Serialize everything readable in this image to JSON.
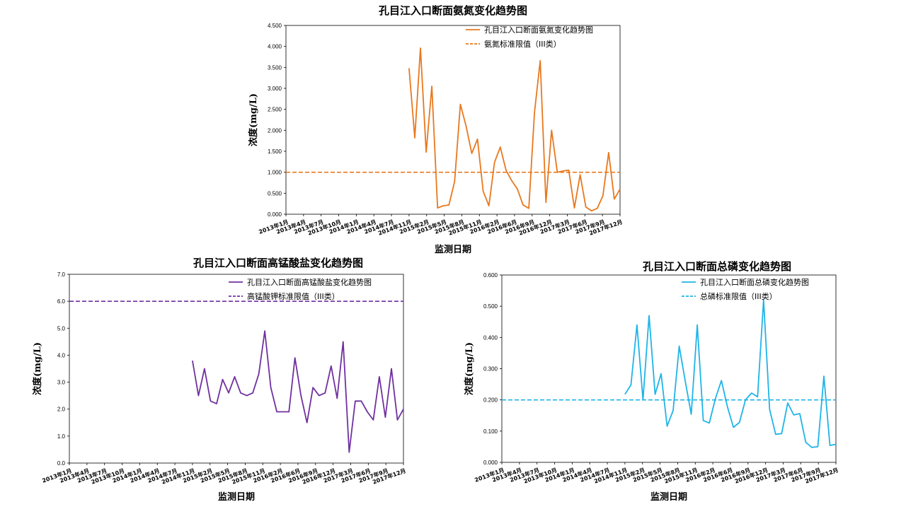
{
  "chart_data": [
    {
      "type": "line",
      "title": "孔目江入口断面氨氮变化趋势图",
      "xlabel": "监测日期",
      "ylabel": "浓度(mg/L)",
      "ylim": [
        0,
        4.5
      ],
      "y_ticks": [
        "0.000",
        "0.500",
        "1.000",
        "1.500",
        "2.000",
        "2.500",
        "3.000",
        "3.500",
        "4.000",
        "4.500"
      ],
      "x_ticks": [
        "2013年1月",
        "2013年4月",
        "2013年7月",
        "2013年10月",
        "2014年1月",
        "2014年4月",
        "2014年7月",
        "2014年11月",
        "2015年2月",
        "2015年5月",
        "2015年8月",
        "2015年11月",
        "2016年2月",
        "2016年6月",
        "2016年9月",
        "2016年12月",
        "2017年3月",
        "2017年6月",
        "2017年9月",
        "2017年12月"
      ],
      "grid": false,
      "legend_position": "top-right",
      "series": [
        {
          "name": "孔目江入口断面氨氮变化趋势图",
          "color": "#E8781E",
          "dashed": false,
          "values": [
            3.48,
            1.82,
            3.96,
            1.48,
            3.05,
            0.15,
            0.2,
            0.22,
            0.78,
            2.62,
            2.1,
            1.45,
            1.79,
            0.55,
            0.2,
            1.24,
            1.6,
            1.05,
            0.8,
            0.6,
            0.22,
            0.14,
            2.42,
            3.66,
            0.28,
            2.0,
            1.0,
            1.03,
            1.05,
            0.15,
            0.94,
            0.17,
            0.08,
            0.14,
            0.44,
            1.47,
            0.36,
            0.6
          ],
          "start_x": 7.0,
          "end_x": 19.0
        },
        {
          "name": "氨氮标准限值（III类）",
          "color": "#E8781E",
          "dashed": true,
          "constant": 1.0
        }
      ]
    },
    {
      "type": "line",
      "title": "孔目江入口断面高锰酸盐变化趋势图",
      "xlabel": "监测日期",
      "ylabel": "浓度(mg/L)",
      "ylim": [
        0,
        7.0
      ],
      "y_ticks": [
        "0.0",
        "1.0",
        "2.0",
        "3.0",
        "4.0",
        "5.0",
        "6.0",
        "7.0"
      ],
      "x_ticks": [
        "2013年1月",
        "2013年4月",
        "2013年7月",
        "2013年10月",
        "2014年1月",
        "2014年4月",
        "2014年7月",
        "2014年11月",
        "2015年2月",
        "2015年5月",
        "2015年8月",
        "2015年11月",
        "2016年2月",
        "2016年6月",
        "2016年9月",
        "2016年12月",
        "2017年3月",
        "2017年6月",
        "2017年9月",
        "2017年12月"
      ],
      "grid": false,
      "legend_position": "top-right",
      "series": [
        {
          "name": "孔目江入口断面高锰酸盐变化趋势图",
          "color": "#7030A0",
          "dashed": false,
          "values": [
            3.8,
            2.5,
            3.5,
            2.3,
            2.2,
            3.1,
            2.6,
            3.2,
            2.6,
            2.5,
            2.6,
            3.3,
            4.9,
            2.8,
            1.9,
            1.9,
            1.9,
            3.9,
            2.5,
            1.5,
            2.8,
            2.5,
            2.6,
            3.6,
            2.4,
            4.5,
            0.4,
            2.3,
            2.3,
            1.9,
            1.6,
            3.2,
            1.7,
            3.5,
            1.6,
            2.0
          ],
          "start_x": 7.0,
          "end_x": 19.0
        },
        {
          "name": "高锰酸钾标准限值（III类）",
          "color": "#7030A0",
          "dashed": true,
          "constant": 6.0
        }
      ]
    },
    {
      "type": "line",
      "title": "孔目江入口断面总磷变化趋势图",
      "xlabel": "监测日期",
      "ylabel": "浓度(mg/L)",
      "ylim": [
        0,
        0.6
      ],
      "y_ticks": [
        "0.000",
        "0.100",
        "0.200",
        "0.300",
        "0.400",
        "0.500",
        "0.600"
      ],
      "x_ticks": [
        "2013年1月",
        "2013年4月",
        "2013年7月",
        "2013年10月",
        "2014年1月",
        "2014年4月",
        "2014年7月",
        "2014年11月",
        "2015年2月",
        "2015年5月",
        "2015年8月",
        "2015年11月",
        "2016年2月",
        "2016年6月",
        "2016年9月",
        "2016年12月",
        "2017年3月",
        "2017年6月",
        "2017年9月",
        "2017年12月"
      ],
      "grid": false,
      "legend_position": "top-right",
      "series": [
        {
          "name": "孔目江入口断面总磷变化趋势图",
          "color": "#1EB4E8",
          "dashed": false,
          "values": [
            0.218,
            0.248,
            0.44,
            0.2,
            0.47,
            0.218,
            0.284,
            0.116,
            0.166,
            0.372,
            0.26,
            0.154,
            0.44,
            0.134,
            0.126,
            0.204,
            0.262,
            0.178,
            0.112,
            0.128,
            0.2,
            0.222,
            0.21,
            0.52,
            0.17,
            0.09,
            0.092,
            0.19,
            0.152,
            0.156,
            0.064,
            0.048,
            0.05,
            0.276,
            0.054,
            0.058
          ],
          "start_x": 7.0,
          "end_x": 19.0
        },
        {
          "name": "总磷标准限值（III类）",
          "color": "#1EB4E8",
          "dashed": true,
          "constant": 0.2
        }
      ]
    }
  ]
}
